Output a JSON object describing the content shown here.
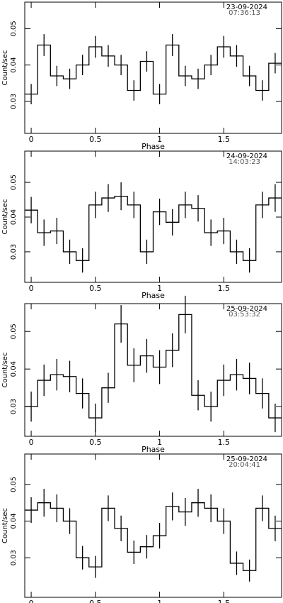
{
  "chart_data": [
    {
      "type": "step",
      "date": "23-09-2024",
      "time": "07:36:13",
      "ylabel": "Count/sec",
      "xlabel": "Phase",
      "x": [
        0,
        0.1,
        0.2,
        0.3,
        0.4,
        0.5,
        0.6,
        0.7,
        0.8,
        0.9,
        1,
        1.1,
        1.2,
        1.3,
        1.4,
        1.5,
        1.6,
        1.7,
        1.8,
        1.9
      ],
      "values": [
        0.032,
        0.0455,
        0.037,
        0.0362,
        0.04,
        0.045,
        0.0425,
        0.04,
        0.033,
        0.041,
        0.032,
        0.0455,
        0.037,
        0.0362,
        0.04,
        0.045,
        0.0425,
        0.037,
        0.033,
        0.0405
      ],
      "errors": [
        0.0028,
        0.003,
        0.0028,
        0.0028,
        0.0028,
        0.003,
        0.003,
        0.0028,
        0.0028,
        0.0028,
        0.0028,
        0.003,
        0.0028,
        0.0028,
        0.0028,
        0.003,
        0.003,
        0.0028,
        0.0028,
        0.0028
      ],
      "color": "#000000",
      "xlim": [
        -0.05,
        1.95
      ],
      "ylim": [
        0.0212,
        0.0573
      ],
      "xticks": [
        0,
        0.5,
        1,
        1.5
      ],
      "yticks": [
        0.03,
        0.04,
        0.05
      ]
    },
    {
      "type": "step",
      "date": "24-09-2024",
      "time": "14:03:23",
      "ylabel": "Count/sec",
      "xlabel": "Phase",
      "x": [
        0,
        0.1,
        0.2,
        0.3,
        0.4,
        0.5,
        0.6,
        0.7,
        0.8,
        0.9,
        1,
        1.1,
        1.2,
        1.3,
        1.4,
        1.5,
        1.6,
        1.7,
        1.8,
        1.9
      ],
      "values": [
        0.042,
        0.0355,
        0.036,
        0.03,
        0.0275,
        0.0435,
        0.0455,
        0.046,
        0.0435,
        0.03,
        0.0415,
        0.0385,
        0.0435,
        0.0425,
        0.0355,
        0.036,
        0.03,
        0.0275,
        0.0435,
        0.0455
      ],
      "errors": [
        0.0038,
        0.0038,
        0.0038,
        0.0035,
        0.0035,
        0.0038,
        0.004,
        0.004,
        0.0038,
        0.0035,
        0.0038,
        0.0038,
        0.0038,
        0.0038,
        0.0038,
        0.0038,
        0.0035,
        0.0035,
        0.0038,
        0.004
      ],
      "color": "#000000",
      "xlim": [
        -0.05,
        1.95
      ],
      "ylim": [
        0.0212,
        0.059
      ],
      "xticks": [
        0,
        0.5,
        1,
        1.5
      ],
      "yticks": [
        0.03,
        0.04,
        0.05
      ]
    },
    {
      "type": "step",
      "date": "25-09-2024",
      "time": "03:53:32",
      "ylabel": "Count/sec",
      "xlabel": "Phase",
      "x": [
        0,
        0.1,
        0.2,
        0.3,
        0.4,
        0.5,
        0.6,
        0.7,
        0.8,
        0.9,
        1,
        1.1,
        1.2,
        1.3,
        1.4,
        1.5,
        1.6,
        1.7,
        1.8,
        1.9
      ],
      "values": [
        0.03,
        0.037,
        0.0385,
        0.038,
        0.0335,
        0.027,
        0.035,
        0.052,
        0.041,
        0.0435,
        0.0405,
        0.045,
        0.0545,
        0.033,
        0.03,
        0.037,
        0.0385,
        0.0375,
        0.0335,
        0.027
      ],
      "errors": [
        0.004,
        0.0042,
        0.0042,
        0.0042,
        0.004,
        0.0038,
        0.004,
        0.005,
        0.0045,
        0.0045,
        0.0045,
        0.0045,
        0.005,
        0.004,
        0.004,
        0.0042,
        0.0042,
        0.0042,
        0.004,
        0.0038
      ],
      "color": "#000000",
      "xlim": [
        -0.05,
        1.95
      ],
      "ylim": [
        0.0221,
        0.0574
      ],
      "xticks": [
        0,
        0.5,
        1,
        1.5
      ],
      "yticks": [
        0.03,
        0.04,
        0.05
      ]
    },
    {
      "type": "step",
      "date": "25-09-2024",
      "time": "20:04:41",
      "ylabel": "Count/sec",
      "xlabel": "Phase",
      "x": [
        0,
        0.1,
        0.2,
        0.3,
        0.4,
        0.5,
        0.6,
        0.7,
        0.8,
        0.9,
        1,
        1.1,
        1.2,
        1.3,
        1.4,
        1.5,
        1.6,
        1.7,
        1.8,
        1.9
      ],
      "values": [
        0.043,
        0.045,
        0.0435,
        0.04,
        0.03,
        0.0275,
        0.0435,
        0.038,
        0.0315,
        0.033,
        0.036,
        0.044,
        0.0425,
        0.045,
        0.0435,
        0.04,
        0.0285,
        0.0265,
        0.0435,
        0.038
      ],
      "errors": [
        0.0035,
        0.0038,
        0.0038,
        0.0035,
        0.0032,
        0.003,
        0.0035,
        0.0035,
        0.0032,
        0.0032,
        0.0035,
        0.0038,
        0.0038,
        0.0038,
        0.0038,
        0.0035,
        0.0032,
        0.003,
        0.0035,
        0.0035
      ],
      "color": "#000000",
      "xlim": [
        -0.05,
        1.95
      ],
      "ylim": [
        0.0192,
        0.0583
      ],
      "xticks": [
        0,
        0.5,
        1,
        1.5
      ],
      "yticks": [
        0.03,
        0.04,
        0.05
      ]
    }
  ]
}
